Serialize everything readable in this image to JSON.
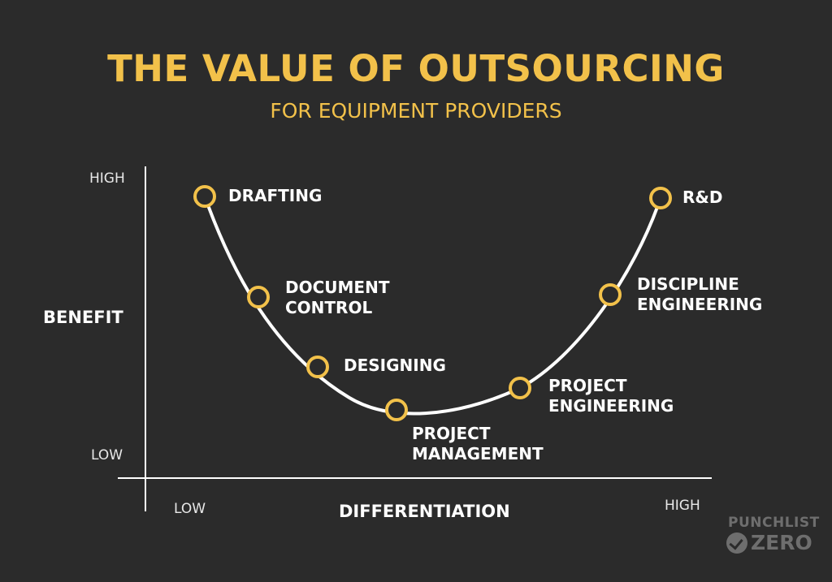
{
  "title": "THE VALUE OF OUTSOURCING",
  "subtitle": "FOR EQUIPMENT PROVIDERS",
  "axes": {
    "y_title": "BENEFIT",
    "x_title": "DIFFERENTIATION",
    "y_high": "HIGH",
    "y_low": "LOW",
    "x_low": "LOW",
    "x_high": "HIGH"
  },
  "nodes": [
    {
      "id": "drafting",
      "lines": [
        "DRAFTING"
      ]
    },
    {
      "id": "document-control",
      "lines": [
        "DOCUMENT",
        "CONTROL"
      ]
    },
    {
      "id": "designing",
      "lines": [
        "DESIGNING"
      ]
    },
    {
      "id": "project-management",
      "lines": [
        "PROJECT",
        "MANAGEMENT"
      ]
    },
    {
      "id": "project-engineering",
      "lines": [
        "PROJECT",
        "ENGINEERING"
      ]
    },
    {
      "id": "discipline-engineering",
      "lines": [
        "DISCIPLINE",
        "ENGINEERING"
      ]
    },
    {
      "id": "rd",
      "lines": [
        "R&D"
      ]
    }
  ],
  "logo": {
    "top": "PUNCHLIST",
    "word": "ZERO",
    "icon": "checkmark-circle-icon"
  },
  "colors": {
    "background": "#2b2b2b",
    "accent": "#f2c14a",
    "curve": "#ffffff",
    "logo": "#6e6e6e"
  }
}
